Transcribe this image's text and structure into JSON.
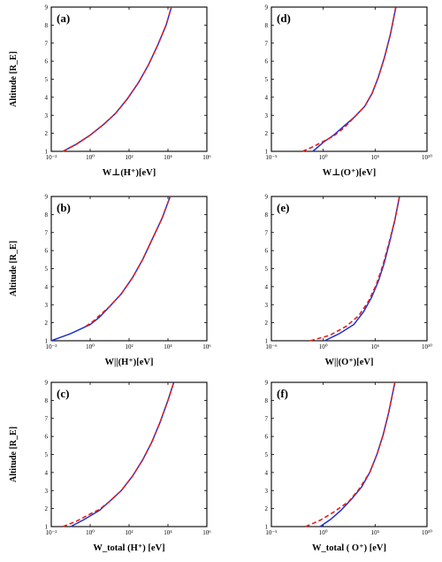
{
  "chart_data": [
    {
      "type": "line",
      "panel_label": "(a)",
      "xlabel": "W⊥(H⁺)[eV]",
      "ylabel": "Altitude [R_E]",
      "xscale": "log",
      "xlim": [
        0.01,
        1000000
      ],
      "ylim": [
        1,
        9
      ],
      "x_ticks": [
        "10⁻²",
        "10⁰",
        "10²",
        "10⁴",
        "10⁶"
      ],
      "y_ticks": [
        "1",
        "2",
        "3",
        "4",
        "5",
        "6",
        "7",
        "8",
        "9"
      ],
      "series": [
        {
          "style": "solid",
          "color": "#1f2fd6",
          "points": [
            [
              0.04,
              1
            ],
            [
              0.2,
              1.4
            ],
            [
              1,
              1.9
            ],
            [
              5,
              2.5
            ],
            [
              20,
              3.1
            ],
            [
              80,
              3.9
            ],
            [
              300,
              4.8
            ],
            [
              1000,
              5.8
            ],
            [
              3000,
              6.9
            ],
            [
              8000,
              8.0
            ],
            [
              15000,
              9
            ]
          ]
        },
        {
          "style": "dashed",
          "color": "#e0201c",
          "points": [
            [
              0.04,
              1
            ],
            [
              0.2,
              1.4
            ],
            [
              1,
              1.9
            ],
            [
              5,
              2.5
            ],
            [
              20,
              3.1
            ],
            [
              80,
              3.9
            ],
            [
              300,
              4.8
            ],
            [
              1000,
              5.8
            ],
            [
              3000,
              6.9
            ],
            [
              8000,
              8.0
            ],
            [
              15000,
              9
            ]
          ]
        }
      ]
    },
    {
      "type": "line",
      "panel_label": "(d)",
      "xlabel": "W⊥(O⁺)[eV]",
      "ylabel": "",
      "xscale": "log",
      "xlim": [
        1e-05,
        10000000000
      ],
      "ylim": [
        1,
        9
      ],
      "x_ticks": [
        "10⁻⁵",
        "10⁰",
        "10⁵",
        "10¹⁰"
      ],
      "y_ticks": [
        "1",
        "2",
        "3",
        "4",
        "5",
        "6",
        "7",
        "8",
        "9"
      ],
      "series": [
        {
          "style": "solid",
          "color": "#1f2fd6",
          "points": [
            [
              0.1,
              1
            ],
            [
              1,
              1.5
            ],
            [
              10,
              1.9
            ],
            [
              100,
              2.4
            ],
            [
              1000,
              2.9
            ],
            [
              10000,
              3.5
            ],
            [
              50000,
              4.2
            ],
            [
              200000,
              5.1
            ],
            [
              800000,
              6.2
            ],
            [
              3000000,
              7.5
            ],
            [
              10000000,
              9
            ]
          ]
        },
        {
          "style": "dashed",
          "color": "#e0201c",
          "points": [
            [
              0.01,
              1
            ],
            [
              0.1,
              1.25
            ],
            [
              1,
              1.55
            ],
            [
              10,
              1.85
            ],
            [
              100,
              2.3
            ],
            [
              1000,
              2.9
            ],
            [
              10000,
              3.5
            ],
            [
              50000,
              4.2
            ],
            [
              200000,
              5.1
            ],
            [
              800000,
              6.2
            ],
            [
              3000000,
              7.5
            ],
            [
              10000000,
              9
            ]
          ]
        }
      ]
    },
    {
      "type": "line",
      "panel_label": "(b)",
      "xlabel": "W||(H⁺)[eV]",
      "ylabel": "Altitude [R_E]",
      "xscale": "log",
      "xlim": [
        0.01,
        1000000
      ],
      "ylim": [
        1,
        9
      ],
      "x_ticks": [
        "10⁻²",
        "10⁰",
        "10²",
        "10⁴",
        "10⁶"
      ],
      "y_ticks": [
        "1",
        "2",
        "3",
        "4",
        "5",
        "6",
        "7",
        "8",
        "9"
      ],
      "series": [
        {
          "style": "solid",
          "color": "#1f2fd6",
          "points": [
            [
              0.01,
              1
            ],
            [
              0.1,
              1.4
            ],
            [
              1,
              1.9
            ],
            [
              3,
              2.3
            ],
            [
              10,
              2.9
            ],
            [
              40,
              3.6
            ],
            [
              150,
              4.5
            ],
            [
              500,
              5.5
            ],
            [
              1500,
              6.6
            ],
            [
              5000,
              7.8
            ],
            [
              13000,
              9
            ]
          ]
        },
        {
          "style": "dashed",
          "color": "#e0201c",
          "points": [
            [
              0.6,
              1.8
            ],
            [
              1.5,
              2.1
            ],
            [
              3,
              2.4
            ],
            [
              10,
              2.9
            ],
            [
              40,
              3.6
            ],
            [
              150,
              4.5
            ],
            [
              500,
              5.5
            ],
            [
              1500,
              6.6
            ],
            [
              5000,
              7.8
            ],
            [
              13000,
              9
            ]
          ]
        }
      ]
    },
    {
      "type": "line",
      "panel_label": "(e)",
      "xlabel": "W||(O⁺)[eV]",
      "ylabel": "",
      "xscale": "log",
      "xlim": [
        1e-06,
        10000000000
      ],
      "ylim": [
        1,
        9
      ],
      "x_ticks": [
        "10⁻⁶",
        "10⁰",
        "10⁶",
        "10¹⁰"
      ],
      "y_ticks": [
        "1",
        "2",
        "3",
        "4",
        "5",
        "6",
        "7",
        "8",
        "9"
      ],
      "series": [
        {
          "style": "solid",
          "color": "#1f2fd6",
          "points": [
            [
              0.3,
              1
            ],
            [
              10,
              1.4
            ],
            [
              300,
              1.9
            ],
            [
              3000,
              2.6
            ],
            [
              20000,
              3.4
            ],
            [
              100000,
              4.3
            ],
            [
              400000,
              5.3
            ],
            [
              1500000,
              6.5
            ],
            [
              5000000,
              7.7
            ],
            [
              15000000,
              9
            ]
          ]
        },
        {
          "style": "dashed",
          "color": "#e0201c",
          "points": [
            [
              0.01,
              1
            ],
            [
              1,
              1.3
            ],
            [
              50,
              1.8
            ],
            [
              1000,
              2.4
            ],
            [
              10000,
              3.2
            ],
            [
              60000,
              4.1
            ],
            [
              300000,
              5.2
            ],
            [
              1200000,
              6.4
            ],
            [
              5000000,
              7.7
            ],
            [
              15000000,
              9
            ]
          ]
        }
      ]
    },
    {
      "type": "line",
      "panel_label": "(c)",
      "xlabel": "W_total (H⁺) [eV]",
      "ylabel": "Altitude [R_E]",
      "xscale": "log",
      "xlim": [
        0.01,
        1000000
      ],
      "ylim": [
        1,
        9
      ],
      "x_ticks": [
        "10⁻²",
        "10⁰",
        "10²",
        "10⁴",
        "10⁶"
      ],
      "y_ticks": [
        "1",
        "2",
        "3",
        "4",
        "5",
        "6",
        "7",
        "8",
        "9"
      ],
      "series": [
        {
          "style": "solid",
          "color": "#1f2fd6",
          "points": [
            [
              0.1,
              1
            ],
            [
              0.5,
              1.4
            ],
            [
              3,
              1.9
            ],
            [
              10,
              2.4
            ],
            [
              40,
              3.0
            ],
            [
              150,
              3.8
            ],
            [
              500,
              4.7
            ],
            [
              1500,
              5.7
            ],
            [
              4000,
              6.8
            ],
            [
              10000,
              8.0
            ],
            [
              20000,
              9
            ]
          ]
        },
        {
          "style": "dashed",
          "color": "#e0201c",
          "points": [
            [
              0.04,
              1
            ],
            [
              0.2,
              1.3
            ],
            [
              1,
              1.7
            ],
            [
              3,
              1.95
            ],
            [
              10,
              2.4
            ],
            [
              40,
              3.0
            ],
            [
              150,
              3.8
            ],
            [
              500,
              4.7
            ],
            [
              1500,
              5.7
            ],
            [
              4000,
              6.8
            ],
            [
              10000,
              8.0
            ],
            [
              20000,
              9
            ]
          ]
        }
      ]
    },
    {
      "type": "line",
      "panel_label": "(f)",
      "xlabel": "W_total ( O⁺) [eV]",
      "ylabel": "",
      "xscale": "log",
      "xlim": [
        1e-05,
        10000000000
      ],
      "ylim": [
        1,
        9
      ],
      "x_ticks": [
        "10⁻⁵",
        "10⁰",
        "10⁵",
        "10¹⁰"
      ],
      "y_ticks": [
        "1",
        "2",
        "3",
        "4",
        "5",
        "6",
        "7",
        "8",
        "9"
      ],
      "series": [
        {
          "style": "solid",
          "color": "#1f2fd6",
          "points": [
            [
              0.5,
              1
            ],
            [
              5,
              1.4
            ],
            [
              50,
              1.9
            ],
            [
              500,
              2.5
            ],
            [
              5000,
              3.2
            ],
            [
              30000,
              4.0
            ],
            [
              150000,
              5.0
            ],
            [
              600000,
              6.1
            ],
            [
              2000000,
              7.3
            ],
            [
              8000000,
              9
            ]
          ]
        },
        {
          "style": "dashed",
          "color": "#e0201c",
          "points": [
            [
              0.02,
              1
            ],
            [
              0.5,
              1.35
            ],
            [
              10,
              1.8
            ],
            [
              300,
              2.4
            ],
            [
              3000,
              3.1
            ],
            [
              30000,
              4.0
            ],
            [
              150000,
              5.0
            ],
            [
              600000,
              6.1
            ],
            [
              2000000,
              7.3
            ],
            [
              8000000,
              9
            ]
          ]
        }
      ]
    }
  ]
}
